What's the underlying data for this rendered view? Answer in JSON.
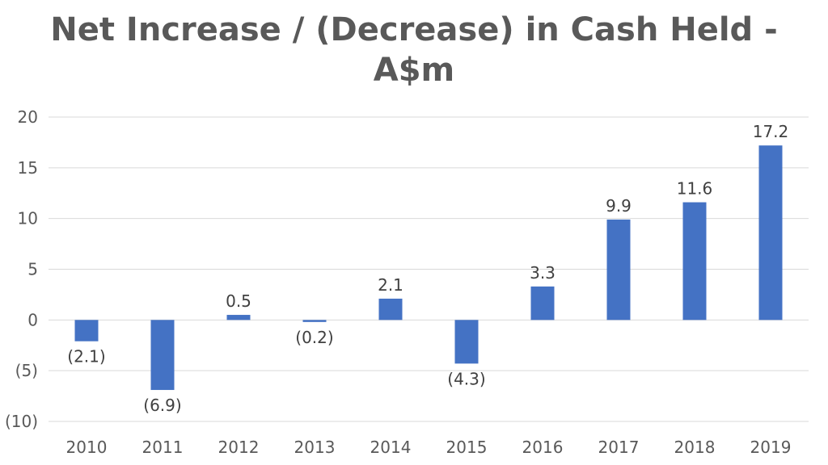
{
  "chart_data": {
    "type": "bar",
    "title_line1": "Net Increase / (Decrease) in Cash Held -",
    "title_line2": "A$m",
    "xlabel": "",
    "ylabel": "",
    "categories": [
      "2010",
      "2011",
      "2012",
      "2013",
      "2014",
      "2015",
      "2016",
      "2017",
      "2018",
      "2019"
    ],
    "values": [
      -2.1,
      -6.9,
      0.5,
      -0.2,
      2.1,
      -4.3,
      3.3,
      9.9,
      11.6,
      17.2
    ],
    "data_labels": [
      "(2.1)",
      "(6.9)",
      "0.5",
      "(0.2)",
      "2.1",
      "(4.3)",
      "3.3",
      "9.9",
      "11.6",
      "17.2"
    ],
    "ylim": [
      -10,
      20
    ],
    "y_ticks": [
      20,
      15,
      10,
      5,
      0,
      -5,
      -10
    ],
    "y_tick_labels": [
      "20",
      "15",
      "10",
      "5",
      "0",
      "(5)",
      "(10)"
    ],
    "grid": true,
    "legend": "none",
    "bar_color": "#4472C4",
    "grid_color": "#D9D9D9"
  }
}
